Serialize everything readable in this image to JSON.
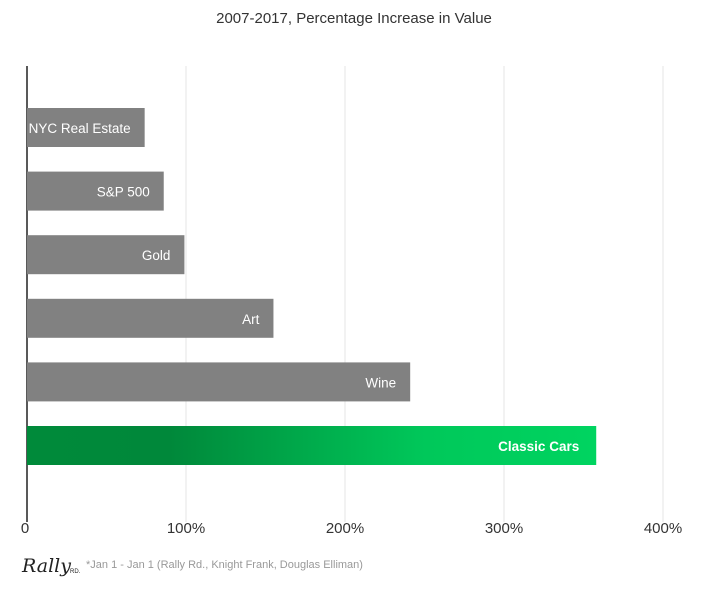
{
  "chart_data": {
    "type": "bar",
    "orientation": "horizontal",
    "title": "2007-2017, Percentage Increase in Value",
    "categories": [
      "NYC Real Estate",
      "S&P 500",
      "Gold",
      "Art",
      "Wine",
      "Classic Cars"
    ],
    "values": [
      74,
      86,
      99,
      155,
      241,
      358
    ],
    "unit": "%",
    "xlim": [
      0,
      400
    ],
    "xticks": [
      "0",
      "100%",
      "200%",
      "300%",
      "400%"
    ],
    "grid": true,
    "colors": {
      "default": "#818181",
      "highlight_start": "#008a3a",
      "highlight_end": "#00d460"
    }
  },
  "footnote": "*Jan 1 - Jan 1 (Rally Rd., Knight Frank, Douglas Elliman)",
  "logo": {
    "text": "Rally",
    "suffix": "RD."
  }
}
